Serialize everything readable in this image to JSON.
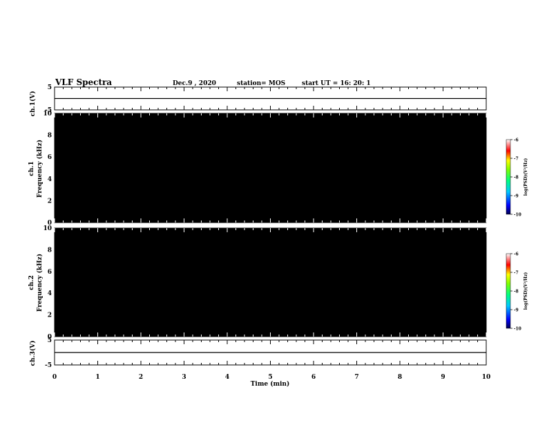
{
  "header": {
    "title": "VLF Spectra",
    "date": "Dec.9 , 2020",
    "station": "station= MOS",
    "start": "start UT =  16: 20: 1"
  },
  "colors": {
    "spec_low": "#0000ff",
    "spec_mid": "#00ff00",
    "spec_high": "#ff0000",
    "background": "#000000"
  },
  "chart_data": [
    {
      "type": "line",
      "panel": "ch1-waveform",
      "ylabel": "ch.1(V)",
      "ylim": [
        -5,
        5
      ],
      "yticks": [
        "5",
        "-5"
      ],
      "x": [
        0,
        10
      ],
      "values": [
        0,
        0
      ]
    },
    {
      "type": "heatmap",
      "panel": "ch1-spectrogram",
      "ylabel_top": "ch.1",
      "ylabel": "Frequency (kHz)",
      "ylim": [
        0,
        10
      ],
      "yticks": [
        "0",
        "2",
        "4",
        "6",
        "8",
        "10"
      ],
      "xlim": [
        0,
        9.8
      ],
      "colorbar": {
        "label": "log(PSD)(V²/Hz)",
        "ticks": [
          "-6",
          "-7",
          "-8",
          "-9",
          "-10"
        ],
        "range": [
          -10,
          -6
        ]
      }
    },
    {
      "type": "heatmap",
      "panel": "ch2-spectrogram",
      "ylabel_top": "ch.2",
      "ylabel": "Frequency (kHz)",
      "ylim": [
        0,
        10
      ],
      "yticks": [
        "0",
        "2",
        "4",
        "6",
        "8",
        "10"
      ],
      "xlim": [
        0,
        9.8
      ],
      "colorbar": {
        "label": "log(PSD)(V²/Hz)",
        "ticks": [
          "-6",
          "-7",
          "-8",
          "-9",
          "-10"
        ],
        "range": [
          -10,
          -6
        ]
      }
    },
    {
      "type": "line",
      "panel": "ch3-waveform",
      "ylabel": "ch.3(V)",
      "ylim": [
        -5,
        5
      ],
      "yticks": [
        "5",
        "-5"
      ],
      "x": [
        0,
        10
      ],
      "values": [
        0,
        0
      ]
    }
  ],
  "xaxis": {
    "label": "Time (min)",
    "ticks": [
      "0",
      "1",
      "2",
      "3",
      "4",
      "5",
      "6",
      "7",
      "8",
      "9",
      "10"
    ],
    "range": [
      0,
      10
    ]
  }
}
